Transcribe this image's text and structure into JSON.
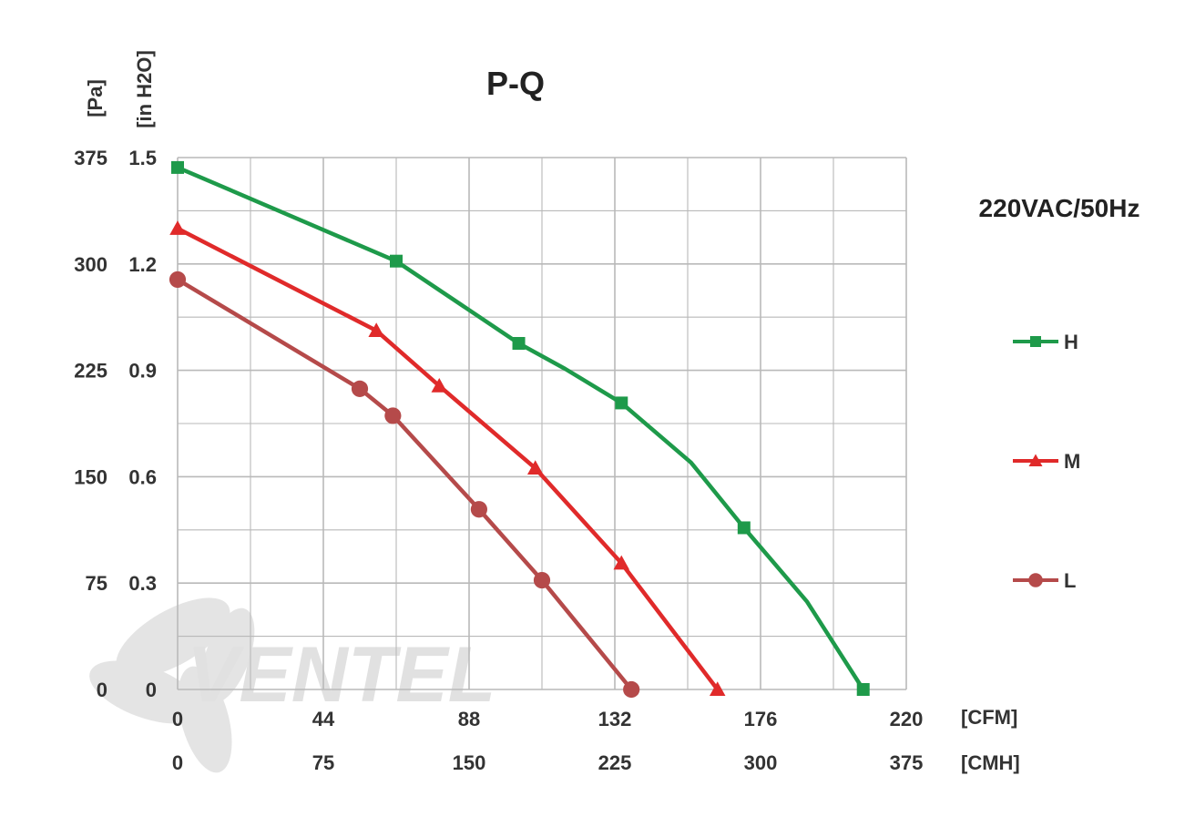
{
  "chart_data": {
    "type": "line",
    "title": "P-Q",
    "annotation": "220VAC/50Hz",
    "watermark": "VENTEL",
    "grid": true,
    "legend_placement": "right",
    "x_axis": {
      "unit_primary": "[CFM]",
      "ticks_primary": [
        "0",
        "44",
        "88",
        "132",
        "176",
        "220"
      ],
      "unit_secondary": "[CMH]",
      "ticks_secondary": [
        "0",
        "75",
        "150",
        "225",
        "300",
        "375"
      ],
      "range": [
        0,
        220
      ]
    },
    "y_axis": {
      "unit_primary": "[Pa]",
      "ticks_primary": [
        "0",
        "75",
        "150",
        "225",
        "300",
        "375"
      ],
      "unit_secondary": "[in H2O]",
      "ticks_secondary": [
        "0",
        "0.3",
        "0.6",
        "0.9",
        "1.2",
        "1.5"
      ],
      "range": [
        0,
        375
      ]
    },
    "series": [
      {
        "name": "H",
        "color": "#1e9a4a",
        "marker": "square",
        "points": [
          [
            0,
            368
          ],
          [
            66,
            302
          ],
          [
            103,
            244
          ],
          [
            134,
            202
          ],
          [
            171,
            114
          ],
          [
            207,
            0
          ]
        ],
        "curve_extra": [
          [
            117,
            226
          ],
          [
            155,
            160
          ],
          [
            190,
            62
          ]
        ]
      },
      {
        "name": "M",
        "color": "#e02a2a",
        "marker": "triangle",
        "points": [
          [
            0,
            325
          ],
          [
            60,
            253
          ],
          [
            79,
            214
          ],
          [
            108,
            156
          ],
          [
            134,
            89
          ],
          [
            163,
            0
          ]
        ]
      },
      {
        "name": "L",
        "color": "#b54a4a",
        "marker": "circle",
        "points": [
          [
            0,
            289
          ],
          [
            55,
            212
          ],
          [
            65,
            193
          ],
          [
            91,
            127
          ],
          [
            110,
            77
          ],
          [
            137,
            0
          ]
        ]
      }
    ]
  }
}
